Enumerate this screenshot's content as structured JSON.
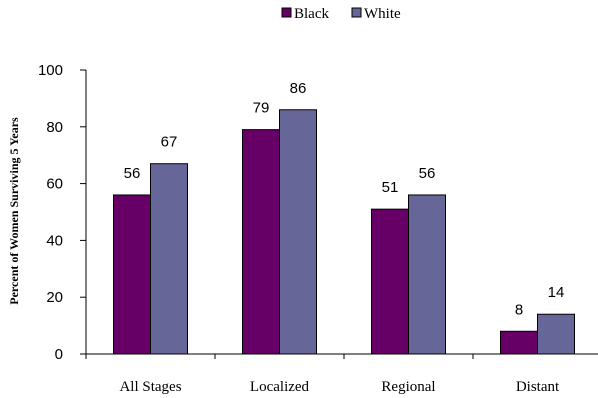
{
  "chart_data": {
    "type": "bar",
    "title": "",
    "xlabel": "",
    "ylabel": "Percent of Women Surviving 5 Years",
    "categories": [
      "All Stages",
      "Localized",
      "Regional",
      "Distant"
    ],
    "series": [
      {
        "name": "Black",
        "values": [
          56,
          79,
          51,
          8
        ],
        "color": "#660066"
      },
      {
        "name": "White",
        "values": [
          67,
          86,
          56,
          14
        ],
        "color": "#666699"
      }
    ],
    "ylim": [
      0,
      100
    ],
    "yticks": [
      0,
      20,
      40,
      60,
      80,
      100
    ],
    "grid": false,
    "legend": "top-center",
    "data_labels": true
  }
}
